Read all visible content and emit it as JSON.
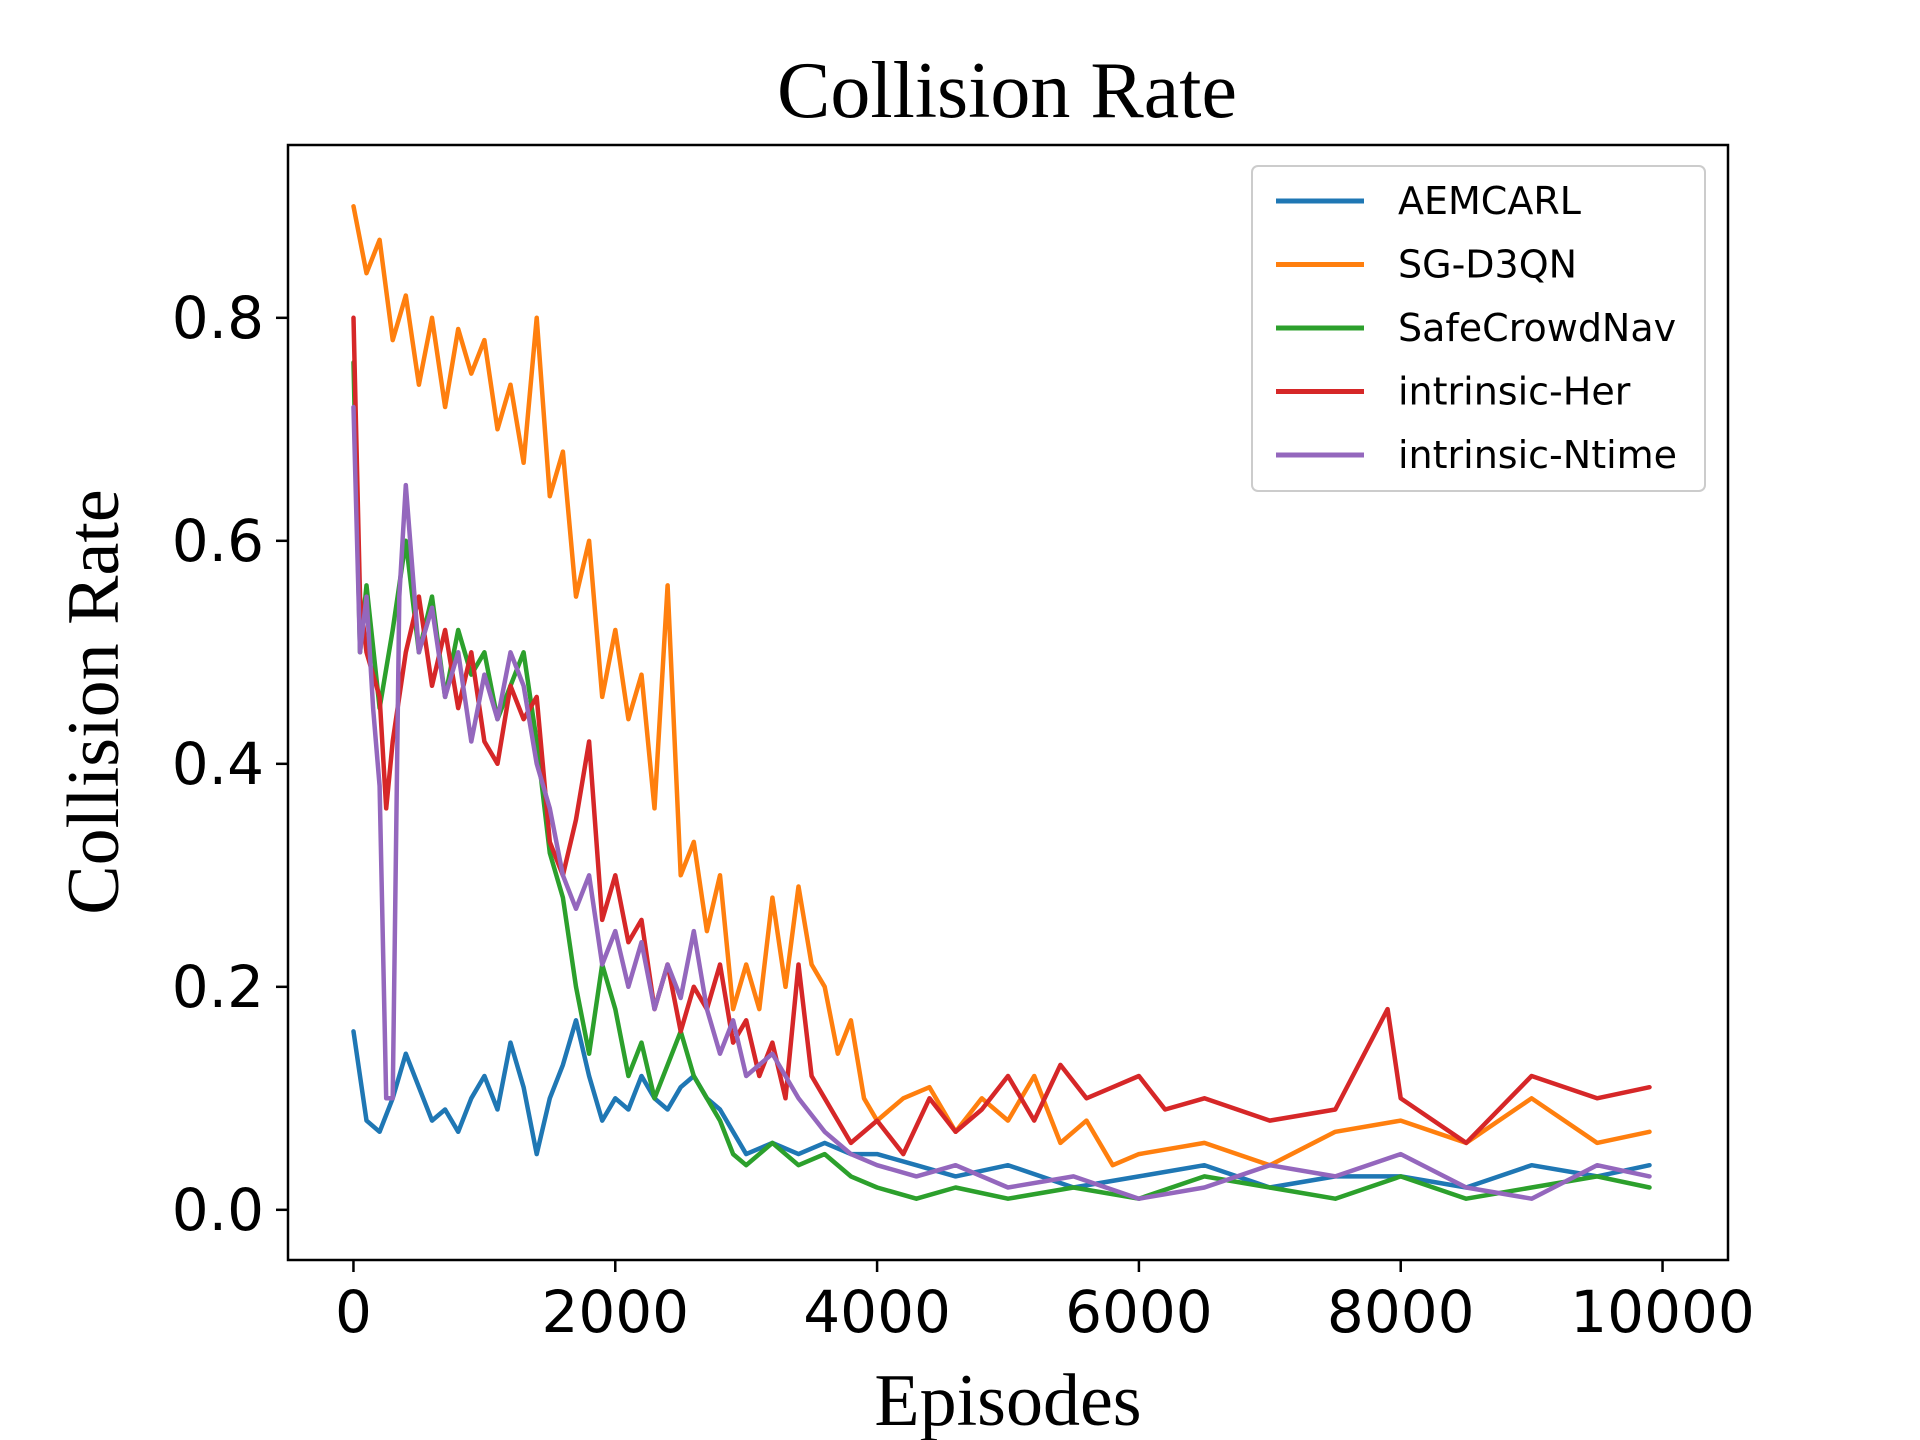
{
  "chart_data": {
    "type": "line",
    "title": "Collision Rate",
    "xlabel": "Episodes",
    "ylabel": "Collision Rate",
    "xlim": [
      -500,
      10500
    ],
    "ylim": [
      -0.045,
      0.955
    ],
    "xticks": [
      0,
      2000,
      4000,
      6000,
      8000,
      10000
    ],
    "xtick_labels": [
      "0",
      "2000",
      "4000",
      "6000",
      "8000",
      "10000"
    ],
    "yticks": [
      0.0,
      0.2,
      0.4,
      0.6,
      0.8
    ],
    "ytick_labels": [
      "0.0",
      "0.2",
      "0.4",
      "0.6",
      "0.8"
    ],
    "grid": false,
    "legend_position": "top-right",
    "series": [
      {
        "name": "AEMCARL",
        "color": "#1f77b4",
        "x": [
          0,
          100,
          200,
          300,
          400,
          500,
          600,
          700,
          800,
          900,
          1000,
          1100,
          1200,
          1300,
          1400,
          1500,
          1600,
          1700,
          1800,
          1900,
          2000,
          2100,
          2200,
          2300,
          2400,
          2500,
          2600,
          2700,
          2800,
          2900,
          3000,
          3200,
          3400,
          3600,
          3800,
          4000,
          4300,
          4600,
          5000,
          5500,
          6000,
          6500,
          7000,
          7500,
          8000,
          8500,
          9000,
          9500,
          9900
        ],
        "y": [
          0.16,
          0.08,
          0.07,
          0.1,
          0.14,
          0.11,
          0.08,
          0.09,
          0.07,
          0.1,
          0.12,
          0.09,
          0.15,
          0.11,
          0.05,
          0.1,
          0.13,
          0.17,
          0.12,
          0.08,
          0.1,
          0.09,
          0.12,
          0.1,
          0.09,
          0.11,
          0.12,
          0.1,
          0.09,
          0.07,
          0.05,
          0.06,
          0.05,
          0.06,
          0.05,
          0.05,
          0.04,
          0.03,
          0.04,
          0.02,
          0.03,
          0.04,
          0.02,
          0.03,
          0.03,
          0.02,
          0.04,
          0.03,
          0.04
        ]
      },
      {
        "name": "SG-D3QN",
        "color": "#ff7f0e",
        "x": [
          0,
          100,
          200,
          300,
          400,
          500,
          600,
          700,
          800,
          900,
          1000,
          1100,
          1200,
          1300,
          1400,
          1500,
          1600,
          1700,
          1800,
          1900,
          2000,
          2100,
          2200,
          2300,
          2400,
          2500,
          2600,
          2700,
          2800,
          2900,
          3000,
          3100,
          3200,
          3300,
          3400,
          3500,
          3600,
          3700,
          3800,
          3900,
          4000,
          4200,
          4400,
          4600,
          4800,
          5000,
          5200,
          5400,
          5600,
          5800,
          6000,
          6500,
          7000,
          7500,
          8000,
          8500,
          9000,
          9500,
          9900
        ],
        "y": [
          0.9,
          0.84,
          0.87,
          0.78,
          0.82,
          0.74,
          0.8,
          0.72,
          0.79,
          0.75,
          0.78,
          0.7,
          0.74,
          0.67,
          0.8,
          0.64,
          0.68,
          0.55,
          0.6,
          0.46,
          0.52,
          0.44,
          0.48,
          0.36,
          0.56,
          0.3,
          0.33,
          0.25,
          0.3,
          0.18,
          0.22,
          0.18,
          0.28,
          0.2,
          0.29,
          0.22,
          0.2,
          0.14,
          0.17,
          0.1,
          0.08,
          0.1,
          0.11,
          0.07,
          0.1,
          0.08,
          0.12,
          0.06,
          0.08,
          0.04,
          0.05,
          0.06,
          0.04,
          0.07,
          0.08,
          0.06,
          0.1,
          0.06,
          0.07
        ]
      },
      {
        "name": "SafeCrowdNav",
        "color": "#2ca02c",
        "x": [
          0,
          50,
          100,
          200,
          300,
          400,
          500,
          600,
          700,
          800,
          900,
          1000,
          1100,
          1200,
          1300,
          1400,
          1500,
          1600,
          1700,
          1800,
          1900,
          2000,
          2100,
          2200,
          2300,
          2400,
          2500,
          2600,
          2700,
          2800,
          2900,
          3000,
          3200,
          3400,
          3600,
          3800,
          4000,
          4300,
          4600,
          5000,
          5500,
          6000,
          6500,
          7000,
          7500,
          8000,
          8500,
          9000,
          9500,
          9900
        ],
        "y": [
          0.76,
          0.5,
          0.56,
          0.45,
          0.52,
          0.6,
          0.5,
          0.55,
          0.46,
          0.52,
          0.48,
          0.5,
          0.44,
          0.47,
          0.5,
          0.42,
          0.32,
          0.28,
          0.2,
          0.14,
          0.22,
          0.18,
          0.12,
          0.15,
          0.1,
          0.13,
          0.16,
          0.12,
          0.1,
          0.08,
          0.05,
          0.04,
          0.06,
          0.04,
          0.05,
          0.03,
          0.02,
          0.01,
          0.02,
          0.01,
          0.02,
          0.01,
          0.03,
          0.02,
          0.01,
          0.03,
          0.01,
          0.02,
          0.03,
          0.02
        ]
      },
      {
        "name": "intrinsic-Her",
        "color": "#d62728",
        "x": [
          0,
          50,
          100,
          200,
          250,
          300,
          400,
          500,
          600,
          700,
          800,
          900,
          1000,
          1100,
          1200,
          1300,
          1400,
          1500,
          1600,
          1700,
          1800,
          1900,
          2000,
          2100,
          2200,
          2300,
          2400,
          2500,
          2600,
          2700,
          2800,
          2900,
          3000,
          3100,
          3200,
          3300,
          3400,
          3500,
          3600,
          3700,
          3800,
          4000,
          4200,
          4400,
          4600,
          4800,
          5000,
          5200,
          5400,
          5600,
          5800,
          6000,
          6200,
          6500,
          7000,
          7500,
          7900,
          8000,
          8500,
          9000,
          9500,
          9900
        ],
        "y": [
          0.8,
          0.55,
          0.5,
          0.46,
          0.36,
          0.42,
          0.5,
          0.55,
          0.47,
          0.52,
          0.45,
          0.5,
          0.42,
          0.4,
          0.47,
          0.44,
          0.46,
          0.33,
          0.3,
          0.35,
          0.42,
          0.26,
          0.3,
          0.24,
          0.26,
          0.18,
          0.22,
          0.16,
          0.2,
          0.18,
          0.22,
          0.15,
          0.17,
          0.12,
          0.15,
          0.1,
          0.22,
          0.12,
          0.1,
          0.08,
          0.06,
          0.08,
          0.05,
          0.1,
          0.07,
          0.09,
          0.12,
          0.08,
          0.13,
          0.1,
          0.11,
          0.12,
          0.09,
          0.1,
          0.08,
          0.09,
          0.18,
          0.1,
          0.06,
          0.12,
          0.1,
          0.11
        ]
      },
      {
        "name": "intrinsic-Ntime",
        "color": "#9467bd",
        "x": [
          0,
          50,
          100,
          150,
          200,
          250,
          300,
          350,
          400,
          500,
          600,
          700,
          800,
          900,
          1000,
          1100,
          1200,
          1300,
          1400,
          1500,
          1600,
          1700,
          1800,
          1900,
          2000,
          2100,
          2200,
          2300,
          2400,
          2500,
          2600,
          2700,
          2800,
          2900,
          3000,
          3200,
          3400,
          3600,
          3800,
          4000,
          4300,
          4600,
          5000,
          5500,
          6000,
          6500,
          7000,
          7500,
          8000,
          8500,
          9000,
          9500,
          9900
        ],
        "y": [
          0.72,
          0.5,
          0.55,
          0.45,
          0.38,
          0.1,
          0.1,
          0.55,
          0.65,
          0.5,
          0.54,
          0.46,
          0.5,
          0.42,
          0.48,
          0.44,
          0.5,
          0.47,
          0.4,
          0.36,
          0.3,
          0.27,
          0.3,
          0.22,
          0.25,
          0.2,
          0.24,
          0.18,
          0.22,
          0.19,
          0.25,
          0.18,
          0.14,
          0.17,
          0.12,
          0.14,
          0.1,
          0.07,
          0.05,
          0.04,
          0.03,
          0.04,
          0.02,
          0.03,
          0.01,
          0.02,
          0.04,
          0.03,
          0.05,
          0.02,
          0.01,
          0.04,
          0.03
        ]
      }
    ]
  }
}
